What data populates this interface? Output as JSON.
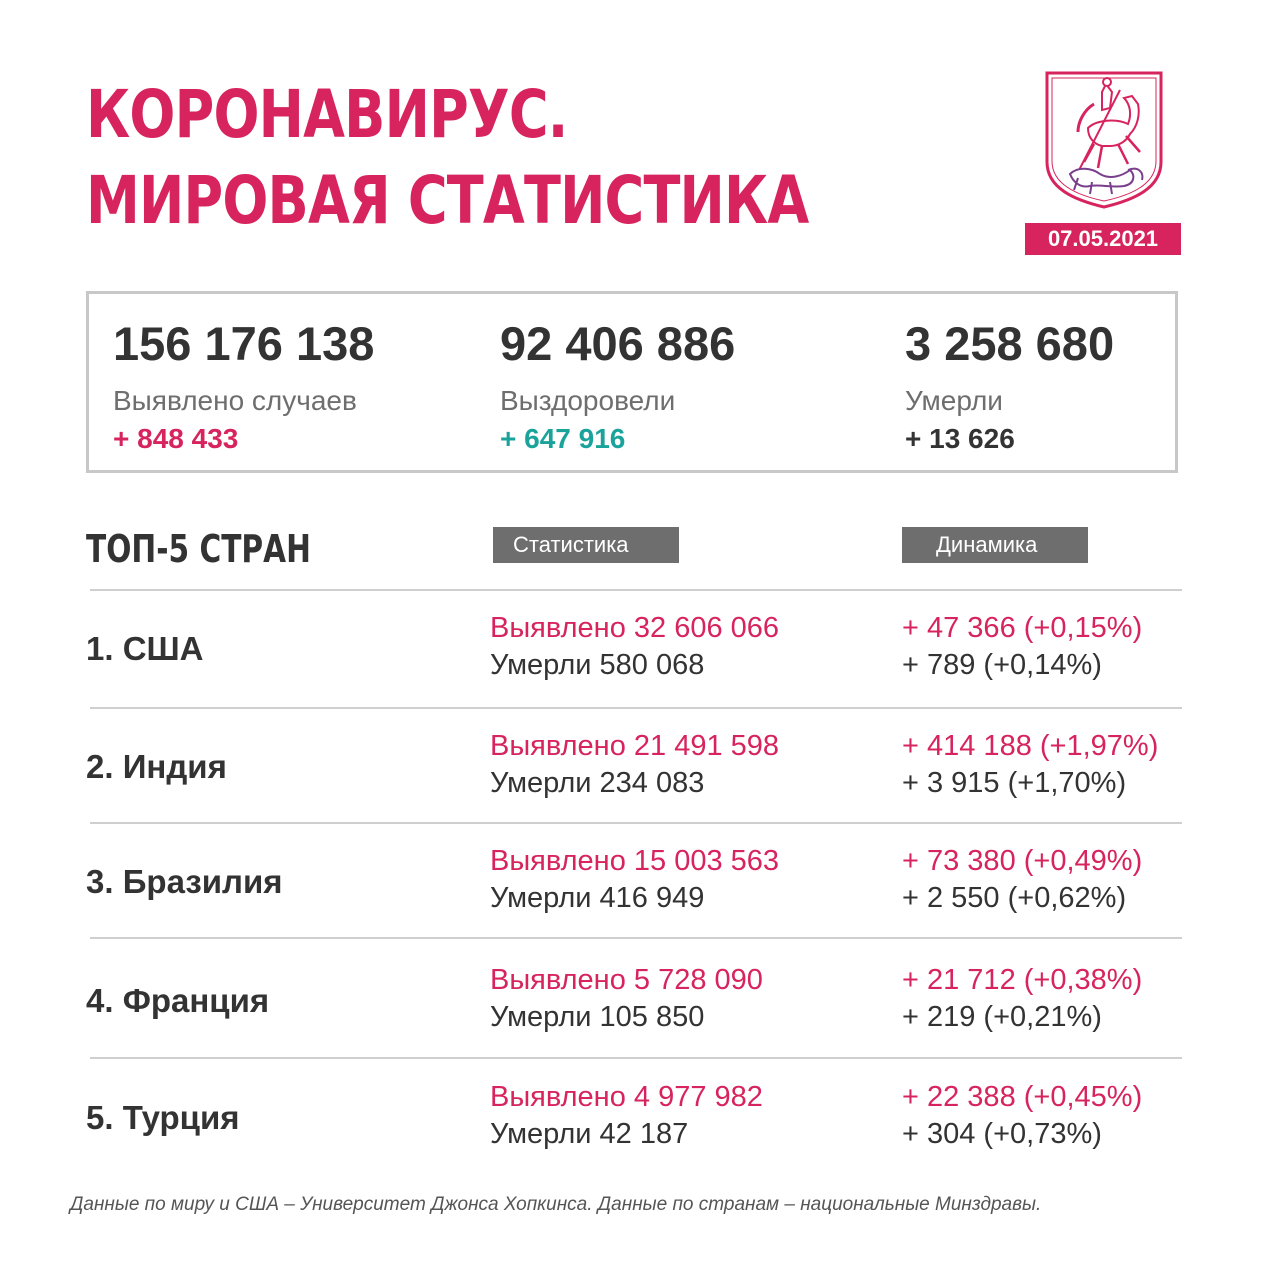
{
  "title": {
    "line1": "КОРОНАВИРУС.",
    "line2": "МИРОВАЯ СТАТИСТИКА"
  },
  "date": "07.05.2021",
  "colors": {
    "accent": "#d7245e",
    "recovered": "#1aa39a",
    "text": "#333333",
    "header_bg": "#6e6e6e"
  },
  "summary": {
    "cases": {
      "value": "156 176 138",
      "label": "Выявлено случаев",
      "delta": "+ 848 433"
    },
    "recovered": {
      "value": "92 406 886",
      "label": "Выздоровели",
      "delta": "+ 647 916"
    },
    "deaths": {
      "value": "3 258 680",
      "label": "Умерли",
      "delta": "+ 13 626"
    }
  },
  "top5": {
    "heading": "ТОП-5 СТРАН",
    "col_stats": "Статистика",
    "col_dynamics": "Динамика",
    "rows": [
      {
        "country": "1. США",
        "cases": "Выявлено 32 606 066",
        "deaths": "Умерли 580 068",
        "cases_delta": "+ 47 366 (+0,15%)",
        "deaths_delta": "+ 789 (+0,14%)"
      },
      {
        "country": "2. Индия",
        "cases": "Выявлено 21 491 598",
        "deaths": "Умерли 234 083",
        "cases_delta": "+ 414 188 (+1,97%)",
        "deaths_delta": "+ 3 915 (+1,70%)"
      },
      {
        "country": "3. Бразилия",
        "cases": "Выявлено 15 003 563",
        "deaths": "Умерли 416 949",
        "cases_delta": "+ 73 380 (+0,49%)",
        "deaths_delta": "+ 2 550 (+0,62%)"
      },
      {
        "country": "4. Франция",
        "cases": "Выявлено 5 728 090",
        "deaths": "Умерли 105 850",
        "cases_delta": "+ 21 712 (+0,38%)",
        "deaths_delta": "+ 219 (+0,21%)"
      },
      {
        "country": "5. Турция",
        "cases": "Выявлено 4 977 982",
        "deaths": "Умерли 42 187",
        "cases_delta": "+ 22 388 (+0,45%)",
        "deaths_delta": "+ 304 (+0,73%)"
      }
    ]
  },
  "footnote": "Данные по миру и США – Университет Джонса Хопкинса. Данные по странам – национальные Минздравы.",
  "crest_icon": "moscow-coat-of-arms-icon"
}
